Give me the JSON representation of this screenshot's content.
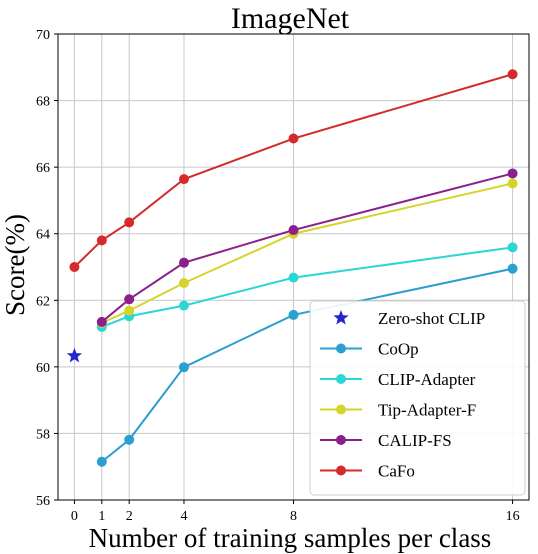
{
  "chart_data": {
    "type": "line",
    "title": "ImageNet",
    "xlabel": "Number of training samples per class",
    "ylabel": "Score(%)",
    "xlim": [
      -0.6,
      16.6
    ],
    "ylim": [
      56,
      70
    ],
    "xticks": [
      0,
      1,
      2,
      4,
      8,
      16
    ],
    "yticks": [
      56,
      58,
      60,
      62,
      64,
      66,
      68,
      70
    ],
    "grid": true,
    "legend_position": "lower-right",
    "zero_shot": {
      "name": "Zero-shot CLIP",
      "x": 0,
      "y": 60.33,
      "color": "#2424cc",
      "marker": "star"
    },
    "series": [
      {
        "name": "CoOp",
        "color": "#2a9fd0",
        "x": [
          1,
          2,
          4,
          8,
          16
        ],
        "y": [
          57.15,
          57.81,
          59.99,
          61.56,
          62.95
        ]
      },
      {
        "name": "CLIP-Adapter",
        "color": "#2ad6d6",
        "x": [
          1,
          2,
          4,
          8,
          16
        ],
        "y": [
          61.2,
          61.52,
          61.84,
          62.68,
          63.59
        ]
      },
      {
        "name": "Tip-Adapter-F",
        "color": "#d4d42a",
        "x": [
          1,
          2,
          4,
          8,
          16
        ],
        "y": [
          61.32,
          61.69,
          62.52,
          64.0,
          65.51
        ]
      },
      {
        "name": "CALIP-FS",
        "color": "#8b1f8b",
        "x": [
          1,
          2,
          4,
          8,
          16
        ],
        "y": [
          61.35,
          62.03,
          63.13,
          64.11,
          65.81
        ]
      },
      {
        "name": "CaFo",
        "color": "#d42a2a",
        "x": [
          0,
          1,
          2,
          4,
          8,
          16
        ],
        "y": [
          63.0,
          63.8,
          64.34,
          65.64,
          66.86,
          68.79
        ]
      }
    ]
  }
}
